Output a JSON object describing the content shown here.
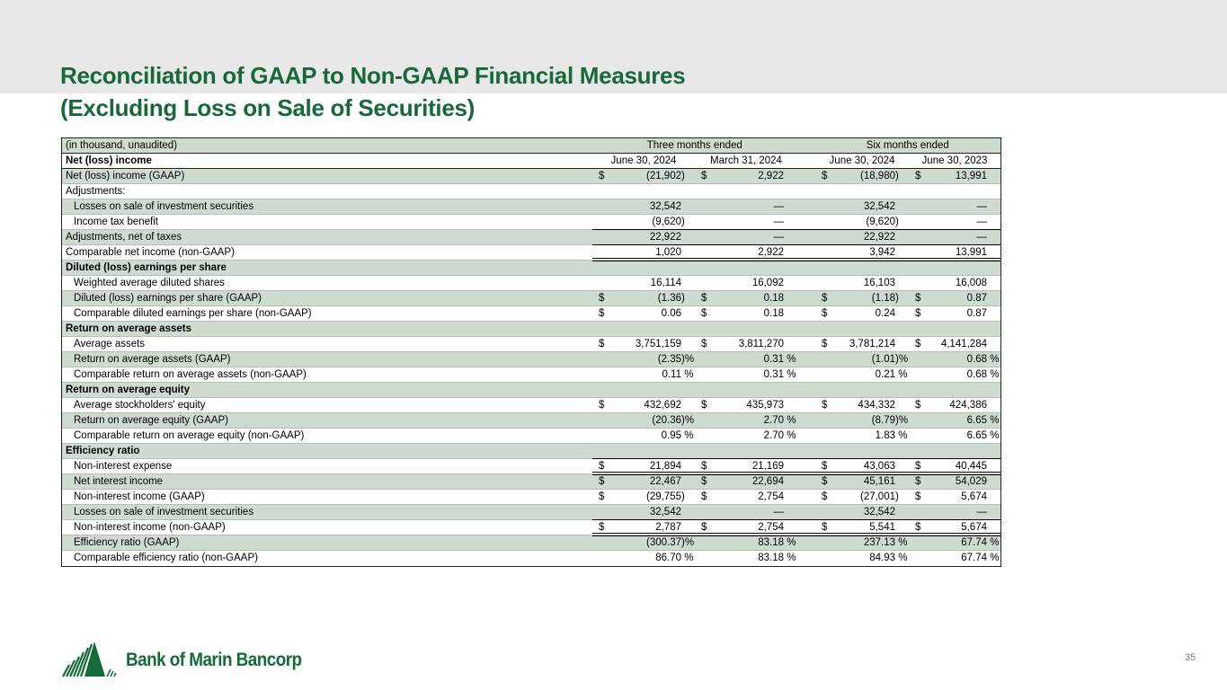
{
  "slide": {
    "title_line1": "Reconciliation of GAAP to Non-GAAP Financial Measures",
    "title_line2": "(Excluding Loss on Sale of Securities)",
    "colors": {
      "title_green": "#17693c",
      "logo_green": "#146a38",
      "row_green": "#cfdbd1",
      "band_gray": "#e8e8e8"
    }
  },
  "footer": {
    "logo_text": "Bank of Marin Bancorp",
    "page_number": "35"
  },
  "table": {
    "unit_note": "(in thousand, unaudited)",
    "groups": [
      "Three months ended",
      "Six months ended"
    ],
    "section_label": "Net (loss) income",
    "col_headers": [
      "June 30, 2024",
      "March 31, 2024",
      "June 30, 2024",
      "June 30, 2023"
    ],
    "rows": [
      {
        "label": "Net (loss) income (GAAP)",
        "cells": [
          [
            "$",
            "(21,902",
            ")"
          ],
          [
            "$",
            "2,922",
            ""
          ],
          [
            "$",
            "(18,980",
            ")"
          ],
          [
            "$",
            "13,991",
            ""
          ]
        ]
      },
      {
        "label": "Adjustments:"
      },
      {
        "label": "Losses on sale of investment securities",
        "indent": true,
        "cells": [
          [
            "",
            "32,542",
            ""
          ],
          [
            "",
            "—",
            ""
          ],
          [
            "",
            "32,542",
            ""
          ],
          [
            "",
            "—",
            ""
          ]
        ]
      },
      {
        "label": "Income tax benefit",
        "indent": true,
        "rule": "single",
        "cells": [
          [
            "",
            "(9,620",
            ")"
          ],
          [
            "",
            "—",
            ""
          ],
          [
            "",
            "(9,620",
            ")"
          ],
          [
            "",
            "—",
            ""
          ]
        ]
      },
      {
        "label": "Adjustments, net of taxes",
        "rule": "single",
        "cells": [
          [
            "",
            "22,922",
            ""
          ],
          [
            "",
            "—",
            ""
          ],
          [
            "",
            "22,922",
            ""
          ],
          [
            "",
            "—",
            ""
          ]
        ]
      },
      {
        "label": "Comparable net income (non-GAAP)",
        "rule": "double",
        "cells": [
          [
            "",
            "1,020",
            ""
          ],
          [
            "",
            "2,922",
            ""
          ],
          [
            "",
            "3,942",
            ""
          ],
          [
            "",
            "13,991",
            ""
          ]
        ]
      },
      {
        "label": "Diluted (loss) earnings per share",
        "bold": true
      },
      {
        "label": "Weighted average diluted shares",
        "indent": true,
        "cells": [
          [
            "",
            "16,114",
            ""
          ],
          [
            "",
            "16,092",
            ""
          ],
          [
            "",
            "16,103",
            ""
          ],
          [
            "",
            "16,008",
            ""
          ]
        ]
      },
      {
        "label": "Diluted (loss) earnings per share (GAAP)",
        "indent": true,
        "cells": [
          [
            "$",
            "(1.36",
            ")"
          ],
          [
            "$",
            "0.18",
            ""
          ],
          [
            "$",
            "(1.18",
            ")"
          ],
          [
            "$",
            "0.87",
            ""
          ]
        ]
      },
      {
        "label": "Comparable diluted earnings per share (non-GAAP)",
        "indent": true,
        "cells": [
          [
            "$",
            "0.06",
            ""
          ],
          [
            "$",
            "0.18",
            ""
          ],
          [
            "$",
            "0.24",
            ""
          ],
          [
            "$",
            "0.87",
            ""
          ]
        ]
      },
      {
        "label": "Return on average assets",
        "bold": true
      },
      {
        "label": "Average assets",
        "indent": true,
        "cells": [
          [
            "$",
            "3,751,159",
            ""
          ],
          [
            "$",
            "3,811,270",
            ""
          ],
          [
            "$",
            "3,781,214",
            ""
          ],
          [
            "$",
            "4,141,284",
            ""
          ]
        ]
      },
      {
        "label": "Return on average assets (GAAP)",
        "indent": true,
        "cells": [
          [
            "",
            "(2.35",
            ")%"
          ],
          [
            "",
            "0.31",
            " %"
          ],
          [
            "",
            "(1.01",
            ")%"
          ],
          [
            "",
            "0.68",
            " %"
          ]
        ]
      },
      {
        "label": "Comparable return on average assets (non-GAAP)",
        "indent": true,
        "cells": [
          [
            "",
            "0.11",
            " %"
          ],
          [
            "",
            "0.31",
            " %"
          ],
          [
            "",
            "0.21",
            " %"
          ],
          [
            "",
            "0.68",
            " %"
          ]
        ]
      },
      {
        "label": "Return on average equity",
        "bold": true
      },
      {
        "label": "Average stockholders' equity",
        "indent": true,
        "cells": [
          [
            "$",
            "432,692",
            ""
          ],
          [
            "$",
            "435,973",
            ""
          ],
          [
            "$",
            "434,332",
            ""
          ],
          [
            "$",
            "424,386",
            ""
          ]
        ]
      },
      {
        "label": "Return on average equity (GAAP)",
        "indent": true,
        "cells": [
          [
            "",
            "(20.36",
            ")%"
          ],
          [
            "",
            "2.70",
            " %"
          ],
          [
            "",
            "(8.79",
            ")%"
          ],
          [
            "",
            "6.65",
            " %"
          ]
        ]
      },
      {
        "label": "Comparable return on average equity (non-GAAP)",
        "indent": true,
        "cells": [
          [
            "",
            "0.95",
            " %"
          ],
          [
            "",
            "2.70",
            " %"
          ],
          [
            "",
            "1.83",
            " %"
          ],
          [
            "",
            "6.65",
            " %"
          ]
        ]
      },
      {
        "label": "Efficiency ratio",
        "bold": true,
        "rule": "single"
      },
      {
        "label": "Non-interest expense",
        "indent": true,
        "rule": "double",
        "cells": [
          [
            "$",
            "21,894",
            ""
          ],
          [
            "$",
            "21,169",
            ""
          ],
          [
            "$",
            "43,063",
            ""
          ],
          [
            "$",
            "40,445",
            ""
          ]
        ]
      },
      {
        "label": "Net interest income",
        "indent": true,
        "cells": [
          [
            "$",
            "22,467",
            ""
          ],
          [
            "$",
            "22,694",
            ""
          ],
          [
            "$",
            "45,161",
            ""
          ],
          [
            "$",
            "54,029",
            ""
          ]
        ]
      },
      {
        "label": "Non-interest income (GAAP)",
        "indent": true,
        "cells": [
          [
            "$",
            "(29,755",
            ")"
          ],
          [
            "$",
            "2,754",
            ""
          ],
          [
            "$",
            "(27,001",
            ")"
          ],
          [
            "$",
            "5,674",
            ""
          ]
        ]
      },
      {
        "label": "Losses on sale of investment securities",
        "indent": true,
        "rule": "single",
        "cells": [
          [
            "",
            "32,542",
            ""
          ],
          [
            "",
            "—",
            ""
          ],
          [
            "",
            "32,542",
            ""
          ],
          [
            "",
            "—",
            ""
          ]
        ]
      },
      {
        "label": "Non-interest income (non-GAAP)",
        "indent": true,
        "rule": "double",
        "cells": [
          [
            "$",
            "2,787",
            ""
          ],
          [
            "$",
            "2,754",
            ""
          ],
          [
            "$",
            "5,541",
            ""
          ],
          [
            "$",
            "5,674",
            ""
          ]
        ]
      },
      {
        "label": "Efficiency ratio (GAAP)",
        "indent": true,
        "cells": [
          [
            "",
            "(300.37",
            ")%"
          ],
          [
            "",
            "83.18",
            " %"
          ],
          [
            "",
            "237.13",
            " %"
          ],
          [
            "",
            "67.74",
            " %"
          ]
        ]
      },
      {
        "label": "Comparable efficiency ratio (non-GAAP)",
        "indent": true,
        "cells": [
          [
            "",
            "86.70",
            " %"
          ],
          [
            "",
            "83.18",
            " %"
          ],
          [
            "",
            "84.93",
            " %"
          ],
          [
            "",
            "67.74",
            " %"
          ]
        ]
      }
    ]
  }
}
